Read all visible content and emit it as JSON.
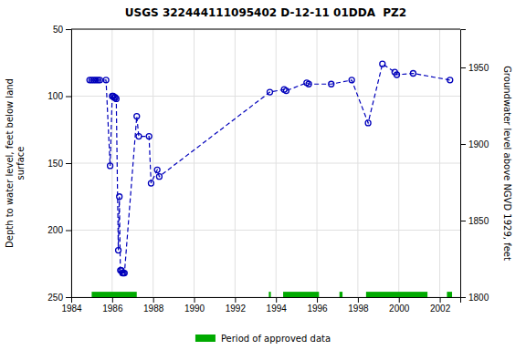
{
  "chart_data": {
    "type": "line",
    "title": "USGS 322444111095402 D-12-11 01DDA  PZ2",
    "ylabel": "Depth to water level, feet below land\nsurface",
    "y2label": "Groundwater level above NGVD 1929, feet",
    "xlim": [
      1984,
      2003
    ],
    "xticks": [
      1984,
      1986,
      1988,
      1990,
      1992,
      1994,
      1996,
      1998,
      2000,
      2002
    ],
    "ylim": [
      250,
      50
    ],
    "yticks": [
      50,
      100,
      150,
      200,
      250
    ],
    "y2lim": [
      1800,
      1975
    ],
    "y2ticks": [
      1800,
      1850,
      1900,
      1950
    ],
    "grid": true,
    "legend": "bottom",
    "x": [
      1984.9,
      1985.0,
      1985.1,
      1985.2,
      1985.3,
      1985.4,
      1985.7,
      1985.9,
      1986.0,
      1986.05,
      1986.1,
      1986.15,
      1986.2,
      1986.3,
      1986.35,
      1986.4,
      1986.45,
      1986.5,
      1986.55,
      1986.6,
      1987.2,
      1987.3,
      1987.8,
      1987.9,
      1988.2,
      1988.3,
      1993.7,
      1994.4,
      1994.5,
      1995.5,
      1995.6,
      1996.7,
      1997.7,
      1998.5,
      1999.2,
      1999.8,
      1999.9,
      2000.7,
      2002.5
    ],
    "series": [
      {
        "color": "#0000BB",
        "line_style": "dashed",
        "marker": "circle",
        "values": [
          88,
          88,
          88,
          88,
          88,
          88,
          88,
          152,
          100,
          100,
          101,
          101,
          102,
          215,
          175,
          230,
          230,
          232,
          232,
          232,
          115,
          130,
          130,
          165,
          155,
          160,
          97,
          95,
          96,
          90,
          91,
          91,
          88,
          120,
          76,
          82,
          84,
          83,
          88
        ]
      }
    ],
    "bands": {
      "name": "Period of approved data",
      "color": "#00AA00",
      "x": [
        [
          1985.0,
          1987.2
        ],
        [
          1993.65,
          1993.75
        ],
        [
          1994.35,
          1996.1
        ],
        [
          1997.1,
          1997.25
        ],
        [
          1998.4,
          2001.4
        ],
        [
          2002.35,
          2002.6
        ]
      ],
      "y": [
        246,
        250
      ]
    }
  }
}
